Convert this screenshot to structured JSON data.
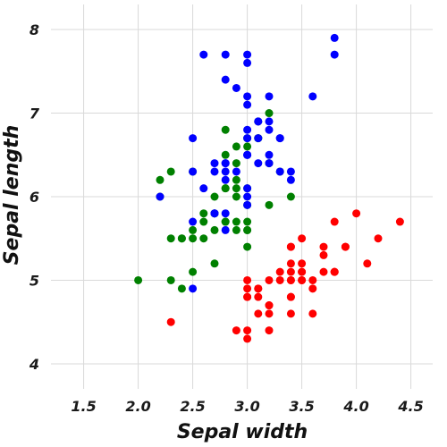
{
  "chart_data": {
    "type": "scatter",
    "title": "",
    "xlabel": "Sepal width",
    "ylabel": "Sepal length",
    "xlim": [
      1.2,
      4.7
    ],
    "ylim": [
      3.7,
      8.3
    ],
    "xticks": [
      1.5,
      2.0,
      2.5,
      3.0,
      3.5,
      4.0,
      4.5
    ],
    "xtick_labels": [
      "1.5",
      "2.0",
      "2.5",
      "3.0",
      "3.5",
      "4.0",
      "4.5"
    ],
    "yticks": [
      4,
      5,
      6,
      7,
      8
    ],
    "ytick_labels": [
      "4",
      "5",
      "6",
      "7",
      "8"
    ],
    "grid": true,
    "legend": "none",
    "series": [
      {
        "color": "#ff0000",
        "points": [
          [
            3.5,
            5.1
          ],
          [
            3.0,
            4.9
          ],
          [
            3.2,
            4.7
          ],
          [
            3.1,
            4.6
          ],
          [
            3.6,
            5.0
          ],
          [
            3.9,
            5.4
          ],
          [
            3.4,
            4.6
          ],
          [
            3.4,
            5.0
          ],
          [
            2.9,
            4.4
          ],
          [
            3.1,
            4.9
          ],
          [
            3.7,
            5.4
          ],
          [
            3.4,
            4.8
          ],
          [
            3.0,
            4.8
          ],
          [
            3.0,
            4.3
          ],
          [
            4.0,
            5.8
          ],
          [
            4.4,
            5.7
          ],
          [
            3.9,
            5.4
          ],
          [
            3.5,
            5.1
          ],
          [
            3.8,
            5.7
          ],
          [
            3.8,
            5.1
          ],
          [
            3.4,
            5.4
          ],
          [
            3.7,
            5.1
          ],
          [
            3.6,
            4.6
          ],
          [
            3.3,
            5.1
          ],
          [
            3.4,
            4.8
          ],
          [
            3.0,
            5.0
          ],
          [
            3.4,
            5.0
          ],
          [
            3.5,
            5.2
          ],
          [
            3.4,
            5.2
          ],
          [
            3.2,
            4.7
          ],
          [
            3.1,
            4.8
          ],
          [
            3.4,
            5.4
          ],
          [
            4.1,
            5.2
          ],
          [
            4.2,
            5.5
          ],
          [
            3.1,
            4.9
          ],
          [
            3.2,
            5.0
          ],
          [
            3.5,
            5.5
          ],
          [
            3.6,
            4.9
          ],
          [
            3.0,
            4.4
          ],
          [
            3.4,
            5.1
          ],
          [
            3.5,
            5.0
          ],
          [
            2.3,
            4.5
          ],
          [
            3.2,
            4.4
          ],
          [
            3.5,
            5.0
          ],
          [
            3.8,
            5.1
          ],
          [
            3.0,
            4.8
          ],
          [
            3.8,
            5.1
          ],
          [
            3.2,
            4.6
          ],
          [
            3.7,
            5.3
          ],
          [
            3.3,
            5.0
          ]
        ]
      },
      {
        "color": "#008000",
        "points": [
          [
            3.2,
            7.0
          ],
          [
            3.2,
            6.4
          ],
          [
            3.1,
            6.9
          ],
          [
            2.3,
            5.5
          ],
          [
            2.8,
            6.5
          ],
          [
            2.8,
            5.7
          ],
          [
            3.3,
            6.3
          ],
          [
            2.4,
            4.9
          ],
          [
            2.9,
            6.6
          ],
          [
            2.7,
            5.2
          ],
          [
            2.0,
            5.0
          ],
          [
            3.0,
            5.9
          ],
          [
            2.2,
            6.0
          ],
          [
            2.9,
            6.1
          ],
          [
            2.9,
            5.6
          ],
          [
            3.1,
            6.7
          ],
          [
            3.0,
            5.6
          ],
          [
            2.7,
            5.8
          ],
          [
            2.2,
            6.2
          ],
          [
            2.5,
            5.6
          ],
          [
            3.2,
            5.9
          ],
          [
            2.8,
            6.1
          ],
          [
            2.5,
            6.3
          ],
          [
            2.8,
            6.1
          ],
          [
            2.9,
            6.4
          ],
          [
            3.0,
            6.6
          ],
          [
            2.8,
            6.8
          ],
          [
            3.0,
            6.7
          ],
          [
            2.9,
            6.0
          ],
          [
            2.6,
            5.7
          ],
          [
            2.4,
            5.5
          ],
          [
            2.4,
            5.5
          ],
          [
            2.7,
            5.8
          ],
          [
            2.7,
            6.0
          ],
          [
            3.0,
            5.4
          ],
          [
            3.4,
            6.0
          ],
          [
            3.1,
            6.7
          ],
          [
            2.3,
            6.3
          ],
          [
            3.0,
            5.6
          ],
          [
            2.5,
            5.5
          ],
          [
            2.6,
            5.5
          ],
          [
            3.0,
            6.1
          ],
          [
            2.6,
            5.8
          ],
          [
            2.3,
            5.0
          ],
          [
            2.7,
            5.6
          ],
          [
            3.0,
            5.7
          ],
          [
            2.9,
            5.7
          ],
          [
            2.9,
            6.2
          ],
          [
            2.5,
            5.1
          ],
          [
            2.8,
            5.7
          ]
        ]
      },
      {
        "color": "#0000ff",
        "points": [
          [
            3.3,
            6.3
          ],
          [
            2.7,
            5.8
          ],
          [
            3.0,
            7.1
          ],
          [
            2.9,
            6.3
          ],
          [
            3.0,
            6.5
          ],
          [
            3.0,
            7.6
          ],
          [
            2.5,
            4.9
          ],
          [
            2.9,
            7.3
          ],
          [
            2.5,
            6.7
          ],
          [
            3.6,
            7.2
          ],
          [
            3.2,
            6.5
          ],
          [
            2.7,
            6.4
          ],
          [
            3.0,
            6.8
          ],
          [
            2.5,
            5.7
          ],
          [
            2.8,
            5.8
          ],
          [
            3.2,
            6.4
          ],
          [
            3.0,
            6.5
          ],
          [
            3.8,
            7.7
          ],
          [
            2.6,
            7.7
          ],
          [
            2.2,
            6.0
          ],
          [
            3.2,
            6.9
          ],
          [
            2.8,
            5.6
          ],
          [
            2.8,
            7.7
          ],
          [
            2.7,
            6.3
          ],
          [
            3.3,
            6.7
          ],
          [
            3.2,
            7.2
          ],
          [
            2.8,
            6.2
          ],
          [
            3.0,
            6.1
          ],
          [
            2.8,
            6.4
          ],
          [
            3.0,
            7.2
          ],
          [
            2.8,
            7.4
          ],
          [
            3.8,
            7.9
          ],
          [
            2.8,
            6.4
          ],
          [
            2.8,
            6.3
          ],
          [
            2.6,
            6.1
          ],
          [
            3.0,
            7.7
          ],
          [
            3.4,
            6.3
          ],
          [
            3.1,
            6.4
          ],
          [
            3.0,
            6.0
          ],
          [
            3.1,
            6.9
          ],
          [
            3.1,
            6.7
          ],
          [
            3.1,
            6.9
          ],
          [
            2.7,
            5.8
          ],
          [
            3.2,
            6.8
          ],
          [
            3.3,
            6.7
          ],
          [
            3.0,
            6.7
          ],
          [
            2.5,
            6.3
          ],
          [
            3.0,
            6.5
          ],
          [
            3.4,
            6.2
          ],
          [
            3.0,
            5.9
          ]
        ]
      }
    ]
  }
}
